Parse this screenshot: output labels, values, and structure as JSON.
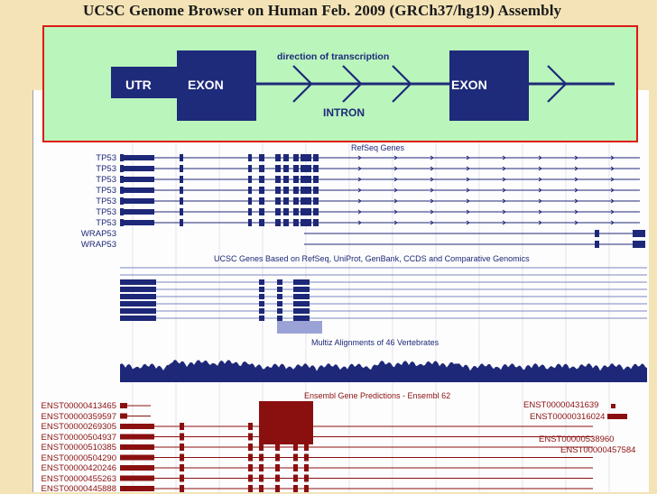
{
  "page": {
    "title": "UCSC Genome Browser on Human Feb. 2009 (GRCh37/hg19) Assembly"
  },
  "gene_diagram": {
    "utr_label": "UTR",
    "exon_label_left": "EXON",
    "exon_label_right": "EXON",
    "intron_label": "INTRON",
    "direction_label": "direction of transcription"
  },
  "tracks": {
    "refseq_title": "RefSeq Genes",
    "refseq_genes": [
      "TP53",
      "TP53",
      "TP53",
      "TP53",
      "TP53",
      "TP53",
      "TP53",
      "WRAP53",
      "WRAP53"
    ],
    "ucsc_title": "UCSC Genes Based on RefSeq, UniProt, GenBank, CCDS and Comparative Genomics",
    "multiz_title": "Multiz Alignments of 46 Vertebrates",
    "ensembl_title": "Ensembl Gene Predictions - Ensembl 62",
    "ensembl_left": [
      "ENST00000413465",
      "ENST00000359597",
      "ENST00000269305",
      "ENST00000504937",
      "ENST00000510385",
      "ENST00000504290",
      "ENST00000420246",
      "ENST00000455263",
      "ENST00000445888"
    ],
    "ensembl_right": [
      "ENST00000431639",
      "ENST00000316024",
      "ENST00000538960",
      "ENST00000457584"
    ]
  },
  "colors": {
    "background": "#f3e3b6",
    "overlay_fill": "#baf5bc",
    "overlay_border": "#e01818",
    "gene_blue": "#1e2878",
    "ensembl_red": "#8a1010"
  }
}
